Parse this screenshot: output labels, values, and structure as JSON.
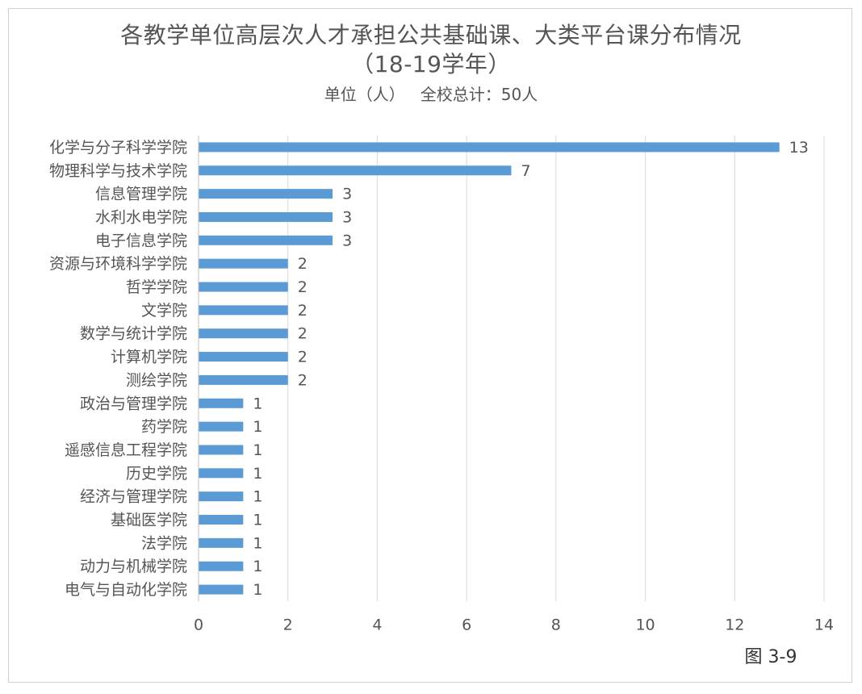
{
  "chart_data": {
    "type": "bar",
    "orientation": "horizontal",
    "title": "各教学单位高层次人才承担公共基础课、大类平台课分布情况（18-19学年）",
    "subtitle": "单位（人）   全校总计：50人",
    "annotation": "图 3-9",
    "categories": [
      "化学与分子科学学院",
      "物理科学与技术学院",
      "信息管理学院",
      "水利水电学院",
      "电子信息学院",
      "资源与环境科学学院",
      "哲学学院",
      "文学院",
      "数学与统计学院",
      "计算机学院",
      "测绘学院",
      "政治与管理学院",
      "药学院",
      "遥感信息工程学院",
      "历史学院",
      "经济与管理学院",
      "基础医学院",
      "法学院",
      "动力与机械学院",
      "电气与自动化学院"
    ],
    "values": [
      13,
      7,
      3,
      3,
      3,
      2,
      2,
      2,
      2,
      2,
      2,
      1,
      1,
      1,
      1,
      1,
      1,
      1,
      1,
      1
    ],
    "color": "#5b9bd5",
    "xlim": [
      0,
      14
    ],
    "xticks": [
      0,
      2,
      4,
      6,
      8,
      10,
      12,
      14
    ],
    "grid": true
  }
}
